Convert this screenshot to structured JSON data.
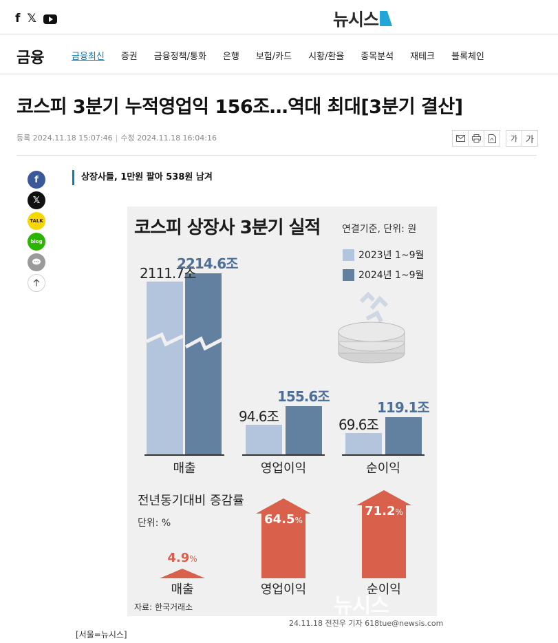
{
  "header": {
    "social": {
      "facebook": "f",
      "x": "𝕏"
    },
    "logo_text": "뉴시스"
  },
  "nav": {
    "section": "금융",
    "items": [
      {
        "label": "금융최신",
        "active": true
      },
      {
        "label": "증권"
      },
      {
        "label": "금융정책/통화"
      },
      {
        "label": "은행"
      },
      {
        "label": "보험/카드"
      },
      {
        "label": "시황/환율"
      },
      {
        "label": "종목분석"
      },
      {
        "label": "재테크"
      },
      {
        "label": "블록체인"
      }
    ]
  },
  "article": {
    "headline": "코스피 3분기 누적영업익 156조…역대 최대[3분기 결산]",
    "registered": "등록 2024.11.18 15:07:46",
    "modified": "수정 2024.11.18 16:04:16",
    "font_small": "가",
    "font_large": "가",
    "subtitle": "상장사들, 1만원 팔아 538원 남겨",
    "dateline": "[서울=뉴시스]",
    "photo_credit": "24.11.18 전진우 기자 618tue@newsis.com"
  },
  "infographic": {
    "title": "코스피 상장사 3분기 실적",
    "unit": "연결기준, 단위: 원",
    "legend": [
      "2023년 1~9월",
      "2024년 1~9월"
    ],
    "colors": {
      "y2023": "#b3c5dd",
      "y2024": "#62809f",
      "growth": "#d9604a"
    },
    "growth_title": "전년동기대비 증감률",
    "growth_unit": "단위: %",
    "source": "자료: 한국거래소",
    "watermark": "뉴시스"
  },
  "chart_data": [
    {
      "type": "bar",
      "title": "코스피 상장사 3분기 실적",
      "categories": [
        "매출",
        "영업이익",
        "순이익"
      ],
      "series": [
        {
          "name": "2023년 1~9월",
          "values": [
            2111.7,
            94.6,
            69.6
          ],
          "labels": [
            "2111.7조",
            "94.6조",
            "69.6조"
          ]
        },
        {
          "name": "2024년 1~9월",
          "values": [
            2214.6,
            155.6,
            119.1
          ],
          "labels": [
            "2214.6조",
            "155.6조",
            "119.1조"
          ]
        }
      ]
    },
    {
      "type": "bar",
      "title": "전년동기대비 증감률",
      "categories": [
        "매출",
        "영업이익",
        "순이익"
      ],
      "values": [
        4.9,
        64.5,
        71.2
      ],
      "labels": [
        "4.9",
        "64.5",
        "71.2"
      ],
      "unit": "%"
    }
  ]
}
